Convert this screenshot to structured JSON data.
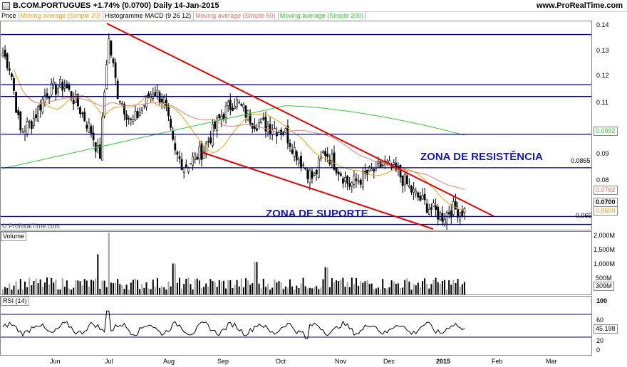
{
  "header": {
    "title": "B.COM.PORTUGUES   +1.74% (0.0700)   Daily   14-Jan-2015",
    "site": "www.ProRealTime.com",
    "copyright": "© ProRealTime.com"
  },
  "legend": {
    "items": [
      {
        "label": "Price",
        "color": "#000000"
      },
      {
        "label": "Moving average (Simple 20)",
        "color": "#e8a317"
      },
      {
        "label": "Histogramme MACD (9 26 12)",
        "color": "#000000"
      },
      {
        "label": "Moving average (Simple 50)",
        "color": "#e07070"
      },
      {
        "label": "Moving average (Simple 200)",
        "color": "#33cc33"
      }
    ]
  },
  "colors": {
    "ma20": "#e8a317",
    "ma50": "#e08080",
    "ma200": "#33cc33",
    "hline": "#00008b",
    "trend": "#e60000",
    "rsi": "#000000",
    "rsi_bound": "#00008b",
    "volume": "#000000",
    "volume_alt": "#a0a0a0",
    "annotation": "#1a1aa0"
  },
  "annotations": {
    "resistance_label": "ZONA DE RESISTÊNCIA",
    "support_label": "ZONA DE SUPORTE"
  },
  "chart_data": [
    {
      "type": "candlestick",
      "panel": "price",
      "ylim": [
        0.063,
        0.142
      ],
      "y_ticks": [
        "0.14",
        "0.13",
        "0.12",
        "0.11",
        "0.09",
        "0.08"
      ],
      "x_labels": [
        "Jun",
        "Jul",
        "Aug",
        "Sep",
        "Oct",
        "Nov",
        "Dec",
        "2015",
        "Feb",
        "Mar"
      ],
      "horizontal_levels": [
        0.137,
        0.118,
        0.1135,
        0.0992,
        0.0865,
        0.068,
        0.065
      ],
      "level_labels": [
        {
          "value": 0.0865,
          "text": "0.0865"
        },
        {
          "value": 0.065,
          "text": "0.065"
        }
      ],
      "price_tags": [
        {
          "value": 0.0992,
          "text": "0.0992",
          "color": "#33cc33"
        },
        {
          "value": 0.0762,
          "text": "0.0762",
          "color": "#e07070"
        },
        {
          "value": 0.07,
          "text": "0.0700",
          "color": "#000000"
        },
        {
          "value": 0.0699,
          "text": "0.0699",
          "color": "#e8a317"
        }
      ],
      "last_close": 0.07
    },
    {
      "type": "bar",
      "panel": "volume",
      "title": "Volume",
      "y_ticks": [
        "2,000M",
        "1,500M",
        "1,000M",
        "500M"
      ],
      "last_value": "309M",
      "ylim": [
        0,
        2000
      ]
    },
    {
      "type": "line",
      "panel": "rsi",
      "title": "RSI (14)",
      "y_ticks": [
        "100",
        "60",
        "20",
        "0"
      ],
      "bands": [
        70,
        30
      ],
      "last_value": "45.198",
      "ylim": [
        0,
        100
      ]
    }
  ]
}
